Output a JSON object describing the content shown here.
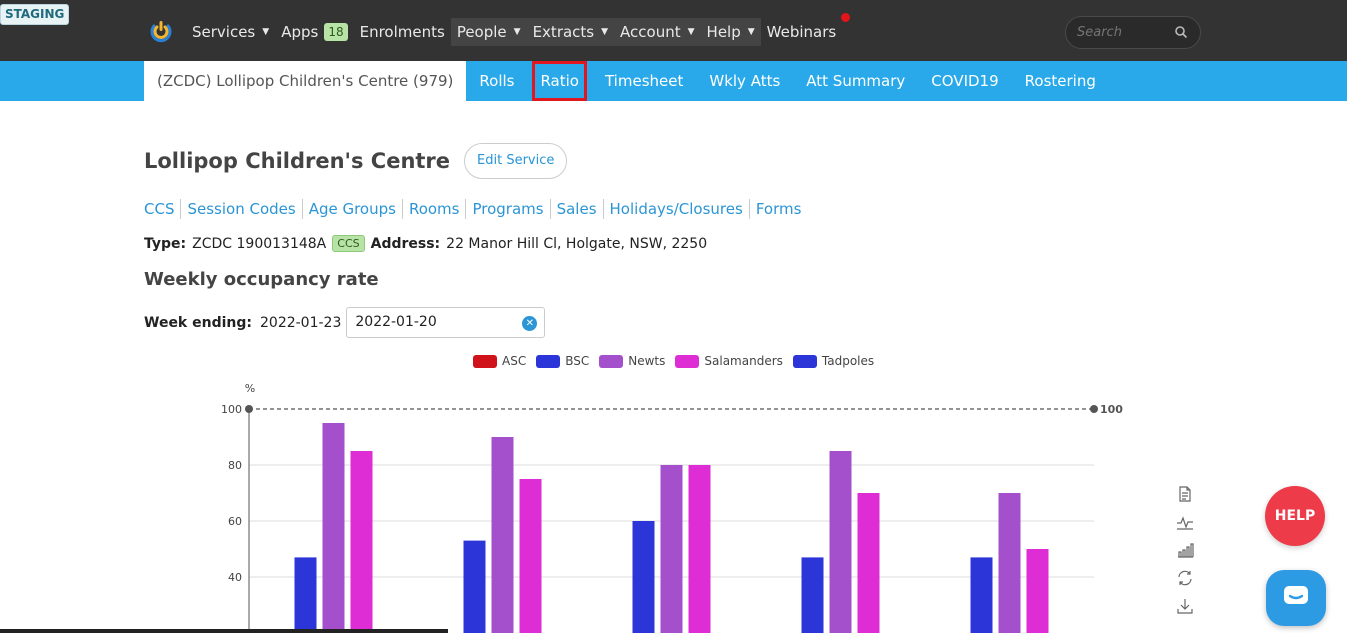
{
  "staging": "STAGING",
  "nav": {
    "items": [
      {
        "label": "Services",
        "dropdown": true,
        "dark": false
      },
      {
        "label": "Apps",
        "badge": "18",
        "dropdown": false,
        "dark": false
      },
      {
        "label": "Enrolments",
        "dropdown": false,
        "dark": false
      },
      {
        "label": "People",
        "dropdown": true,
        "dark": true
      },
      {
        "label": "Extracts",
        "dropdown": true,
        "dark": true
      },
      {
        "label": "Account",
        "dropdown": true,
        "dark": true
      },
      {
        "label": "Help",
        "dropdown": true,
        "dark": true
      },
      {
        "label": "Webinars",
        "dropdown": false,
        "dark": false
      }
    ],
    "search_placeholder": "Search"
  },
  "subnav": {
    "current": "(ZCDC) Lollipop Children's Centre (979)",
    "tabs": [
      "Rolls",
      "Ratio",
      "Timesheet",
      "Wkly Atts",
      "Att Summary",
      "COVID19",
      "Rostering"
    ]
  },
  "page": {
    "title": "Lollipop Children's Centre",
    "edit_label": "Edit Service",
    "links": [
      "CCS",
      "Session Codes",
      "Age Groups",
      "Rooms",
      "Programs",
      "Sales",
      "Holidays/Closures",
      "Forms"
    ],
    "type_label": "Type:",
    "type_value": "ZCDC 190013148A",
    "ccs_badge": "CCS",
    "address_label": "Address:",
    "address_value": "22 Manor Hill Cl, Holgate, NSW, 2250",
    "section_title": "Weekly occupancy rate",
    "week_label": "Week ending:",
    "week_value": "2022-01-23",
    "date_input_value": "2022-01-20"
  },
  "help_label": "HELP",
  "colors": {
    "ASC": "#d0121b",
    "BSC": "#2b35d8",
    "Newts": "#a44fcc",
    "Salamanders": "#df2dd5",
    "Tadpoles": "#2b35d8"
  },
  "chart_data": {
    "type": "bar",
    "ylabel": "%",
    "ylim": [
      20,
      100
    ],
    "yticks": [
      40,
      60,
      80,
      100
    ],
    "markline": 100,
    "categories": [
      "",
      "",
      "",
      "",
      ""
    ],
    "series": [
      {
        "name": "ASC",
        "values": [
          0,
          0,
          0,
          0,
          0
        ]
      },
      {
        "name": "BSC",
        "values": [
          47,
          53,
          60,
          47,
          47
        ]
      },
      {
        "name": "Newts",
        "values": [
          95,
          90,
          80,
          85,
          70
        ]
      },
      {
        "name": "Salamanders",
        "values": [
          85,
          75,
          80,
          70,
          50
        ]
      },
      {
        "name": "Tadpoles",
        "values": [
          0,
          0,
          0,
          0,
          0
        ]
      }
    ]
  }
}
